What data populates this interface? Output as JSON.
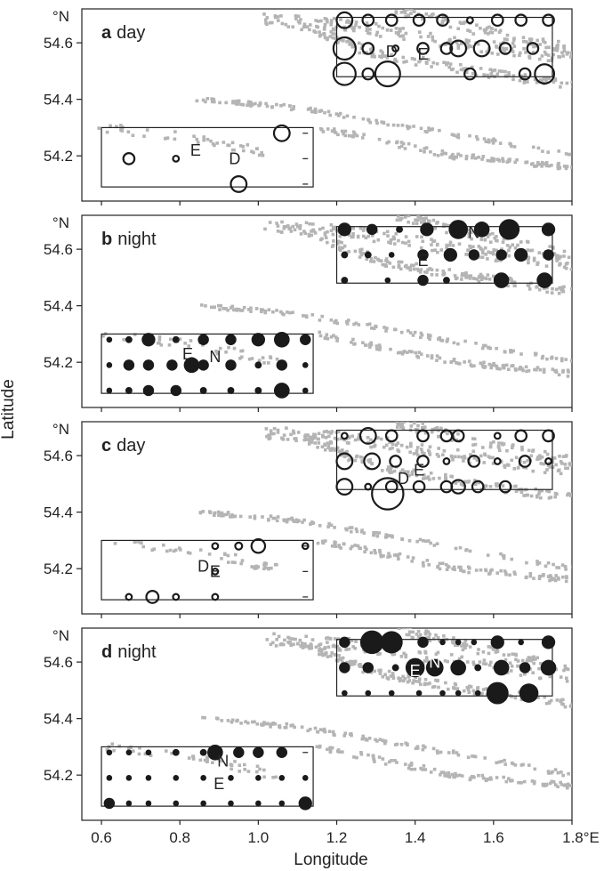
{
  "figure": {
    "ylabel": "Latitude",
    "xlabel": "Longitude",
    "x_ticks": [
      0.6,
      0.8,
      1.0,
      1.2,
      1.4,
      1.6,
      1.8
    ],
    "x_tick_labels": [
      "0.6",
      "0.8",
      "1.0",
      "1.2",
      "1.4",
      "1.6",
      "1.8°E"
    ],
    "y_ticks": [
      54.2,
      54.4,
      54.6
    ],
    "y_tick_labels": [
      "54.2",
      "54.4",
      "54.6"
    ],
    "y_unit": "°N",
    "xlim": [
      0.55,
      1.8
    ],
    "ylim": [
      54.04,
      54.72
    ],
    "track_color": "#b4b4b4",
    "marker_color": "#1a1a1a"
  },
  "chart_data": [
    {
      "type": "scatter",
      "panel_letter": "a",
      "panel_period": "day",
      "marker_fill": "open",
      "boxes": [
        [
          1.2,
          54.48,
          1.75,
          54.69
        ],
        [
          0.6,
          54.09,
          1.14,
          54.3
        ]
      ],
      "markers": [
        [
          1.22,
          54.68,
          2
        ],
        [
          1.28,
          54.68,
          1
        ],
        [
          1.34,
          54.68,
          1
        ],
        [
          1.41,
          54.68,
          1
        ],
        [
          1.47,
          54.68,
          1
        ],
        [
          1.54,
          54.68,
          0.5
        ],
        [
          1.61,
          54.68,
          1
        ],
        [
          1.67,
          54.68,
          1
        ],
        [
          1.74,
          54.68,
          1
        ],
        [
          1.22,
          54.58,
          4
        ],
        [
          1.28,
          54.58,
          1
        ],
        [
          1.35,
          54.58,
          0.5
        ],
        [
          1.42,
          54.58,
          1
        ],
        [
          1.48,
          54.58,
          1
        ],
        [
          1.51,
          54.58,
          2
        ],
        [
          1.57,
          54.58,
          2
        ],
        [
          1.63,
          54.58,
          1
        ],
        [
          1.7,
          54.58,
          1
        ],
        [
          1.22,
          54.49,
          4
        ],
        [
          1.28,
          54.49,
          1
        ],
        [
          1.33,
          54.49,
          5
        ],
        [
          1.54,
          54.49,
          1
        ],
        [
          1.68,
          54.49,
          1
        ],
        [
          1.73,
          54.49,
          3
        ],
        [
          1.06,
          54.28,
          2
        ],
        [
          0.67,
          54.19,
          1
        ],
        [
          0.79,
          54.19,
          0.5
        ],
        [
          0.95,
          54.1,
          2
        ]
      ],
      "dashes": [
        [
          1.12,
          54.28
        ],
        [
          1.12,
          54.19
        ],
        [
          1.12,
          54.1
        ]
      ],
      "labels": [
        {
          "text": "E",
          "x": 1.42,
          "y": 54.54
        },
        {
          "text": "D",
          "x": 1.34,
          "y": 54.55
        },
        {
          "text": "E",
          "x": 0.84,
          "y": 54.2
        },
        {
          "text": "D",
          "x": 0.94,
          "y": 54.17
        }
      ]
    },
    {
      "type": "scatter",
      "panel_letter": "b",
      "panel_period": "night",
      "marker_fill": "filled",
      "boxes": [
        [
          1.2,
          54.48,
          1.75,
          54.68
        ],
        [
          0.6,
          54.09,
          1.14,
          54.3
        ]
      ],
      "markers": [
        [
          1.22,
          54.67,
          1.5
        ],
        [
          1.29,
          54.67,
          1
        ],
        [
          1.36,
          54.67,
          0.7
        ],
        [
          1.43,
          54.67,
          1.5
        ],
        [
          1.51,
          54.67,
          3
        ],
        [
          1.57,
          54.67,
          2
        ],
        [
          1.64,
          54.67,
          3.5
        ],
        [
          1.74,
          54.67,
          1.5
        ],
        [
          1.22,
          54.58,
          0.7
        ],
        [
          1.28,
          54.58,
          0.7
        ],
        [
          1.34,
          54.58,
          0.5
        ],
        [
          1.42,
          54.58,
          1
        ],
        [
          1.49,
          54.58,
          1.5
        ],
        [
          1.55,
          54.58,
          1
        ],
        [
          1.62,
          54.58,
          1
        ],
        [
          1.67,
          54.58,
          1.5
        ],
        [
          1.74,
          54.58,
          1
        ],
        [
          1.22,
          54.49,
          0.7
        ],
        [
          1.33,
          54.49,
          0.5
        ],
        [
          1.42,
          54.49,
          1
        ],
        [
          1.48,
          54.49,
          0.7
        ],
        [
          1.62,
          54.49,
          2
        ],
        [
          1.73,
          54.49,
          2
        ],
        [
          0.62,
          54.28,
          0.5
        ],
        [
          0.67,
          54.28,
          0.7
        ],
        [
          0.72,
          54.28,
          1.5
        ],
        [
          0.79,
          54.28,
          0.7
        ],
        [
          0.86,
          54.28,
          1
        ],
        [
          0.93,
          54.28,
          1
        ],
        [
          1.0,
          54.28,
          1.5
        ],
        [
          1.06,
          54.28,
          2
        ],
        [
          1.12,
          54.28,
          1
        ],
        [
          0.62,
          54.19,
          0.5
        ],
        [
          0.67,
          54.19,
          1
        ],
        [
          0.72,
          54.19,
          1
        ],
        [
          0.78,
          54.19,
          1
        ],
        [
          0.83,
          54.19,
          2
        ],
        [
          0.86,
          54.19,
          1
        ],
        [
          0.93,
          54.19,
          1
        ],
        [
          1.0,
          54.19,
          0.7
        ],
        [
          1.06,
          54.19,
          1
        ],
        [
          1.12,
          54.19,
          0.5
        ],
        [
          0.62,
          54.1,
          0.5
        ],
        [
          0.67,
          54.1,
          0.7
        ],
        [
          0.72,
          54.1,
          1
        ],
        [
          0.79,
          54.1,
          1
        ],
        [
          0.86,
          54.1,
          0.7
        ],
        [
          0.93,
          54.1,
          0.7
        ],
        [
          1.0,
          54.1,
          0.7
        ],
        [
          1.06,
          54.1,
          2
        ],
        [
          1.12,
          54.1,
          0.5
        ]
      ],
      "dashes": [],
      "labels": [
        {
          "text": "N",
          "x": 1.55,
          "y": 54.64
        },
        {
          "text": "E",
          "x": 1.42,
          "y": 54.54
        },
        {
          "text": "E",
          "x": 0.82,
          "y": 54.21
        },
        {
          "text": "N",
          "x": 0.89,
          "y": 54.2
        }
      ]
    },
    {
      "type": "scatter",
      "panel_letter": "c",
      "panel_period": "day",
      "marker_fill": "open",
      "boxes": [
        [
          1.2,
          54.48,
          1.75,
          54.69
        ],
        [
          0.6,
          54.09,
          1.14,
          54.3
        ]
      ],
      "markers": [
        [
          1.22,
          54.67,
          0.5
        ],
        [
          1.28,
          54.67,
          2
        ],
        [
          1.34,
          54.67,
          1
        ],
        [
          1.42,
          54.67,
          1
        ],
        [
          1.48,
          54.67,
          1
        ],
        [
          1.51,
          54.67,
          1
        ],
        [
          1.61,
          54.67,
          0.5
        ],
        [
          1.67,
          54.67,
          1
        ],
        [
          1.74,
          54.67,
          1
        ],
        [
          1.22,
          54.58,
          2
        ],
        [
          1.29,
          54.58,
          2
        ],
        [
          1.35,
          54.58,
          1
        ],
        [
          1.42,
          54.58,
          1
        ],
        [
          1.48,
          54.58,
          0.5
        ],
        [
          1.55,
          54.58,
          1
        ],
        [
          1.61,
          54.58,
          0.5
        ],
        [
          1.68,
          54.58,
          1
        ],
        [
          1.74,
          54.58,
          0.5
        ],
        [
          1.22,
          54.49,
          2
        ],
        [
          1.28,
          54.49,
          0.5
        ],
        [
          1.34,
          54.49,
          1
        ],
        [
          1.41,
          54.49,
          1
        ],
        [
          1.48,
          54.49,
          1
        ],
        [
          1.51,
          54.49,
          1.5
        ],
        [
          1.56,
          54.49,
          1
        ],
        [
          1.63,
          54.49,
          1
        ],
        [
          1.33,
          54.465,
          8
        ],
        [
          0.89,
          54.28,
          0.5
        ],
        [
          0.95,
          54.28,
          0.7
        ],
        [
          1.0,
          54.28,
          1.5
        ],
        [
          1.12,
          54.28,
          0.5
        ],
        [
          0.89,
          54.19,
          0.5
        ],
        [
          0.67,
          54.1,
          0.5
        ],
        [
          0.73,
          54.1,
          1.2
        ],
        [
          0.79,
          54.1,
          0.5
        ],
        [
          0.89,
          54.1,
          0.5
        ]
      ],
      "dashes": [
        [
          1.12,
          54.28
        ],
        [
          1.12,
          54.19
        ],
        [
          1.12,
          54.1
        ]
      ],
      "labels": [
        {
          "text": "D",
          "x": 1.37,
          "y": 54.5
        },
        {
          "text": "E",
          "x": 1.41,
          "y": 54.53
        },
        {
          "text": "D",
          "x": 0.86,
          "y": 54.19
        },
        {
          "text": "E",
          "x": 0.89,
          "y": 54.17
        }
      ]
    },
    {
      "type": "scatter",
      "panel_letter": "d",
      "panel_period": "night",
      "marker_fill": "filled",
      "boxes": [
        [
          1.2,
          54.48,
          1.75,
          54.68
        ],
        [
          0.6,
          54.09,
          1.14,
          54.3
        ]
      ],
      "markers": [
        [
          1.22,
          54.67,
          1
        ],
        [
          1.29,
          54.67,
          4.5
        ],
        [
          1.34,
          54.67,
          4
        ],
        [
          1.42,
          54.67,
          1
        ],
        [
          1.47,
          54.67,
          0.5
        ],
        [
          1.51,
          54.67,
          0.5
        ],
        [
          1.55,
          54.67,
          0.5
        ],
        [
          1.61,
          54.67,
          1.5
        ],
        [
          1.67,
          54.67,
          0.5
        ],
        [
          1.74,
          54.67,
          1.5
        ],
        [
          1.22,
          54.58,
          1
        ],
        [
          1.28,
          54.58,
          1
        ],
        [
          1.35,
          54.58,
          0.7
        ],
        [
          1.4,
          54.58,
          3
        ],
        [
          1.45,
          54.58,
          2.5
        ],
        [
          1.51,
          54.58,
          2
        ],
        [
          1.56,
          54.58,
          0.7
        ],
        [
          1.62,
          54.58,
          2
        ],
        [
          1.68,
          54.58,
          1
        ],
        [
          1.74,
          54.58,
          2
        ],
        [
          1.22,
          54.49,
          0.5
        ],
        [
          1.28,
          54.49,
          0.5
        ],
        [
          1.34,
          54.49,
          0.5
        ],
        [
          1.41,
          54.49,
          0.5
        ],
        [
          1.47,
          54.49,
          0.5
        ],
        [
          1.51,
          54.49,
          0.5
        ],
        [
          1.56,
          54.49,
          0.5
        ],
        [
          1.61,
          54.49,
          4
        ],
        [
          1.69,
          54.49,
          3
        ],
        [
          0.62,
          54.28,
          0.5
        ],
        [
          0.67,
          54.28,
          0.5
        ],
        [
          0.72,
          54.28,
          0.5
        ],
        [
          0.79,
          54.28,
          0.7
        ],
        [
          0.86,
          54.28,
          0.7
        ],
        [
          0.89,
          54.28,
          2
        ],
        [
          0.95,
          54.28,
          1
        ],
        [
          1.0,
          54.28,
          1
        ],
        [
          1.06,
          54.28,
          1
        ],
        [
          0.62,
          54.19,
          0.5
        ],
        [
          0.67,
          54.19,
          0.5
        ],
        [
          0.72,
          54.19,
          0.5
        ],
        [
          0.79,
          54.19,
          0.5
        ],
        [
          0.86,
          54.19,
          0.5
        ],
        [
          0.93,
          54.19,
          0.5
        ],
        [
          1.0,
          54.19,
          0.5
        ],
        [
          1.06,
          54.19,
          0.5
        ],
        [
          1.12,
          54.19,
          0.5
        ],
        [
          0.62,
          54.1,
          1
        ],
        [
          0.67,
          54.1,
          0.5
        ],
        [
          0.72,
          54.1,
          0.5
        ],
        [
          0.79,
          54.1,
          0.5
        ],
        [
          0.86,
          54.1,
          0.5
        ],
        [
          0.93,
          54.1,
          0.5
        ],
        [
          1.0,
          54.1,
          0.5
        ],
        [
          1.06,
          54.1,
          0.5
        ],
        [
          1.12,
          54.1,
          1.5
        ]
      ],
      "dashes": [
        [
          1.12,
          54.28
        ]
      ],
      "labels": [
        {
          "text": "E",
          "x": 1.4,
          "y": 54.55,
          "inverse": true
        },
        {
          "text": "N",
          "x": 1.45,
          "y": 54.58,
          "inverse": true
        },
        {
          "text": "N",
          "x": 0.91,
          "y": 54.23
        },
        {
          "text": "E",
          "x": 0.9,
          "y": 54.15
        }
      ]
    }
  ]
}
